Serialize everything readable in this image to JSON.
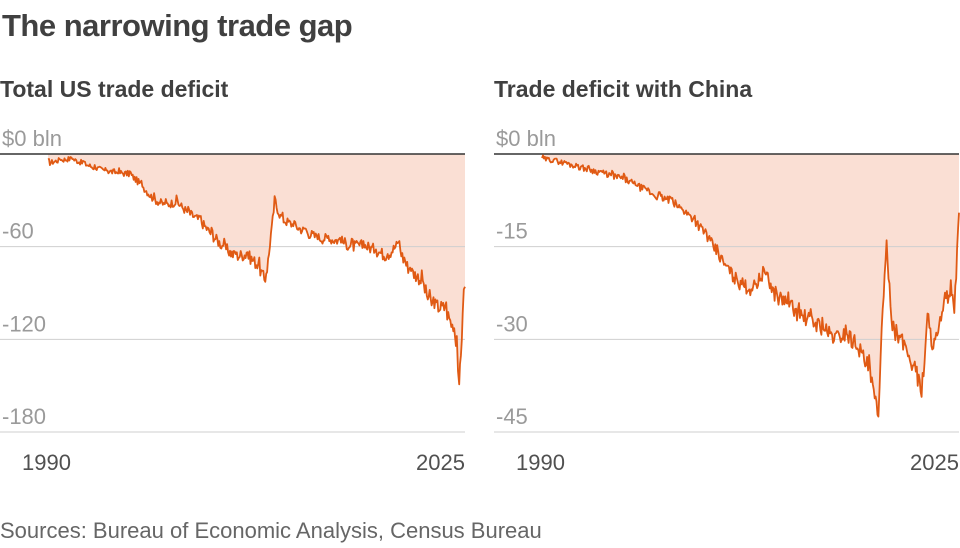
{
  "title": "The narrowing trade gap",
  "source": "Sources: Bureau of Economic Analysis, Census Bureau",
  "colors": {
    "line": "#e05a14",
    "fill": "#fadfd4",
    "grid": "#cfcfcf",
    "zero": "#333333"
  },
  "chart_data": [
    {
      "type": "area",
      "title": "Total US trade deficit",
      "ylim": [
        -180,
        0
      ],
      "xlim": [
        1990,
        2025.7
      ],
      "y_ticks": [
        0,
        -60,
        -120,
        -180
      ],
      "y_tick_labels": [
        "$0 bln",
        "-60",
        "-120",
        "-180"
      ],
      "x_ticks": [
        1990,
        2025
      ],
      "x_tick_labels": [
        "1990",
        "2025"
      ],
      "grid": true,
      "series": [
        {
          "x": [
            1990.0,
            1991.0,
            1992.0,
            1993.0,
            1994.0,
            1995.0,
            1996.0,
            1997.0,
            1998.0,
            1999.0,
            2000.0,
            2001.0,
            2002.0,
            2003.0,
            2004.0,
            2005.0,
            2006.0,
            2007.0,
            2008.0,
            2008.6,
            2009.0,
            2009.4,
            2010.0,
            2011.0,
            2012.0,
            2013.0,
            2014.0,
            2015.0,
            2016.0,
            2017.0,
            2018.0,
            2019.0,
            2020.0,
            2020.5,
            2021.0,
            2022.0,
            2022.6,
            2023.0,
            2024.0,
            2024.7,
            2025.0,
            2025.2,
            2025.5,
            2025.7
          ],
          "values": [
            -6,
            -4,
            -3,
            -6,
            -9,
            -11,
            -12,
            -13,
            -20,
            -29,
            -33,
            -31,
            -38,
            -43,
            -52,
            -60,
            -66,
            -65,
            -72,
            -83,
            -60,
            -31,
            -42,
            -46,
            -50,
            -54,
            -55,
            -56,
            -60,
            -59,
            -62,
            -66,
            -58,
            -70,
            -75,
            -82,
            -95,
            -98,
            -100,
            -113,
            -121,
            -160,
            -103,
            -86
          ]
        }
      ]
    },
    {
      "type": "area",
      "title": "Trade deficit with China",
      "ylim": [
        -45,
        0
      ],
      "xlim": [
        1990,
        2025.7
      ],
      "y_ticks": [
        0,
        -15,
        -30,
        -45
      ],
      "y_tick_labels": [
        "$0 bln",
        "-15",
        "-30",
        "-45"
      ],
      "x_ticks": [
        1990,
        2025
      ],
      "x_tick_labels": [
        "1990",
        "2025"
      ],
      "grid": true,
      "series": [
        {
          "x": [
            1990.0,
            1991.0,
            1992.0,
            1993.0,
            1994.0,
            1995.0,
            1996.0,
            1997.0,
            1998.0,
            1999.0,
            2000.0,
            2001.0,
            2002.0,
            2003.0,
            2004.0,
            2005.0,
            2006.0,
            2007.0,
            2008.0,
            2009.0,
            2010.0,
            2011.0,
            2012.0,
            2013.0,
            2014.0,
            2015.0,
            2016.0,
            2017.0,
            2018.0,
            2018.8,
            2019.0,
            2019.5,
            2020.0,
            2021.0,
            2022.0,
            2022.5,
            2023.0,
            2023.5,
            2024.0,
            2024.5,
            2025.0,
            2025.3,
            2025.7
          ],
          "values": [
            -0.8,
            -1.0,
            -1.5,
            -2,
            -2.5,
            -3,
            -3.5,
            -4,
            -5,
            -6,
            -7,
            -7.5,
            -9,
            -10.5,
            -13,
            -16,
            -19,
            -21,
            -22,
            -19,
            -23,
            -24,
            -26,
            -27,
            -28,
            -30,
            -29,
            -31,
            -35,
            -43,
            -32,
            -15,
            -28,
            -31,
            -35,
            -39,
            -27,
            -31,
            -29,
            -24,
            -22,
            -26,
            -9.5
          ]
        }
      ]
    }
  ]
}
